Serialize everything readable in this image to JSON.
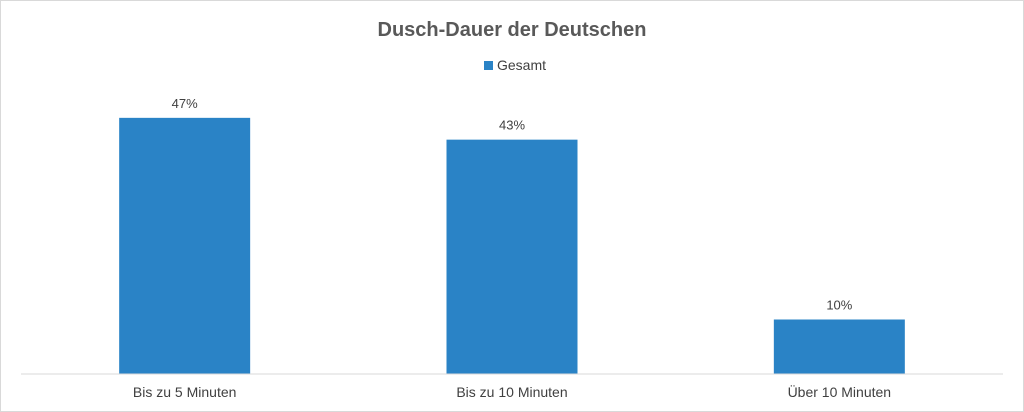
{
  "chart_data": {
    "type": "bar",
    "title": "Dusch-Dauer der Deutschen",
    "categories": [
      "Bis zu 5 Minuten",
      "Bis zu 10 Minuten",
      "Über 10 Minuten"
    ],
    "series": [
      {
        "name": "Gesamt",
        "values": [
          47,
          43,
          10
        ],
        "color": "#2a83c6"
      }
    ],
    "data_labels": [
      "47%",
      "43%",
      "10%"
    ],
    "legend_position": "top",
    "grid": false
  }
}
